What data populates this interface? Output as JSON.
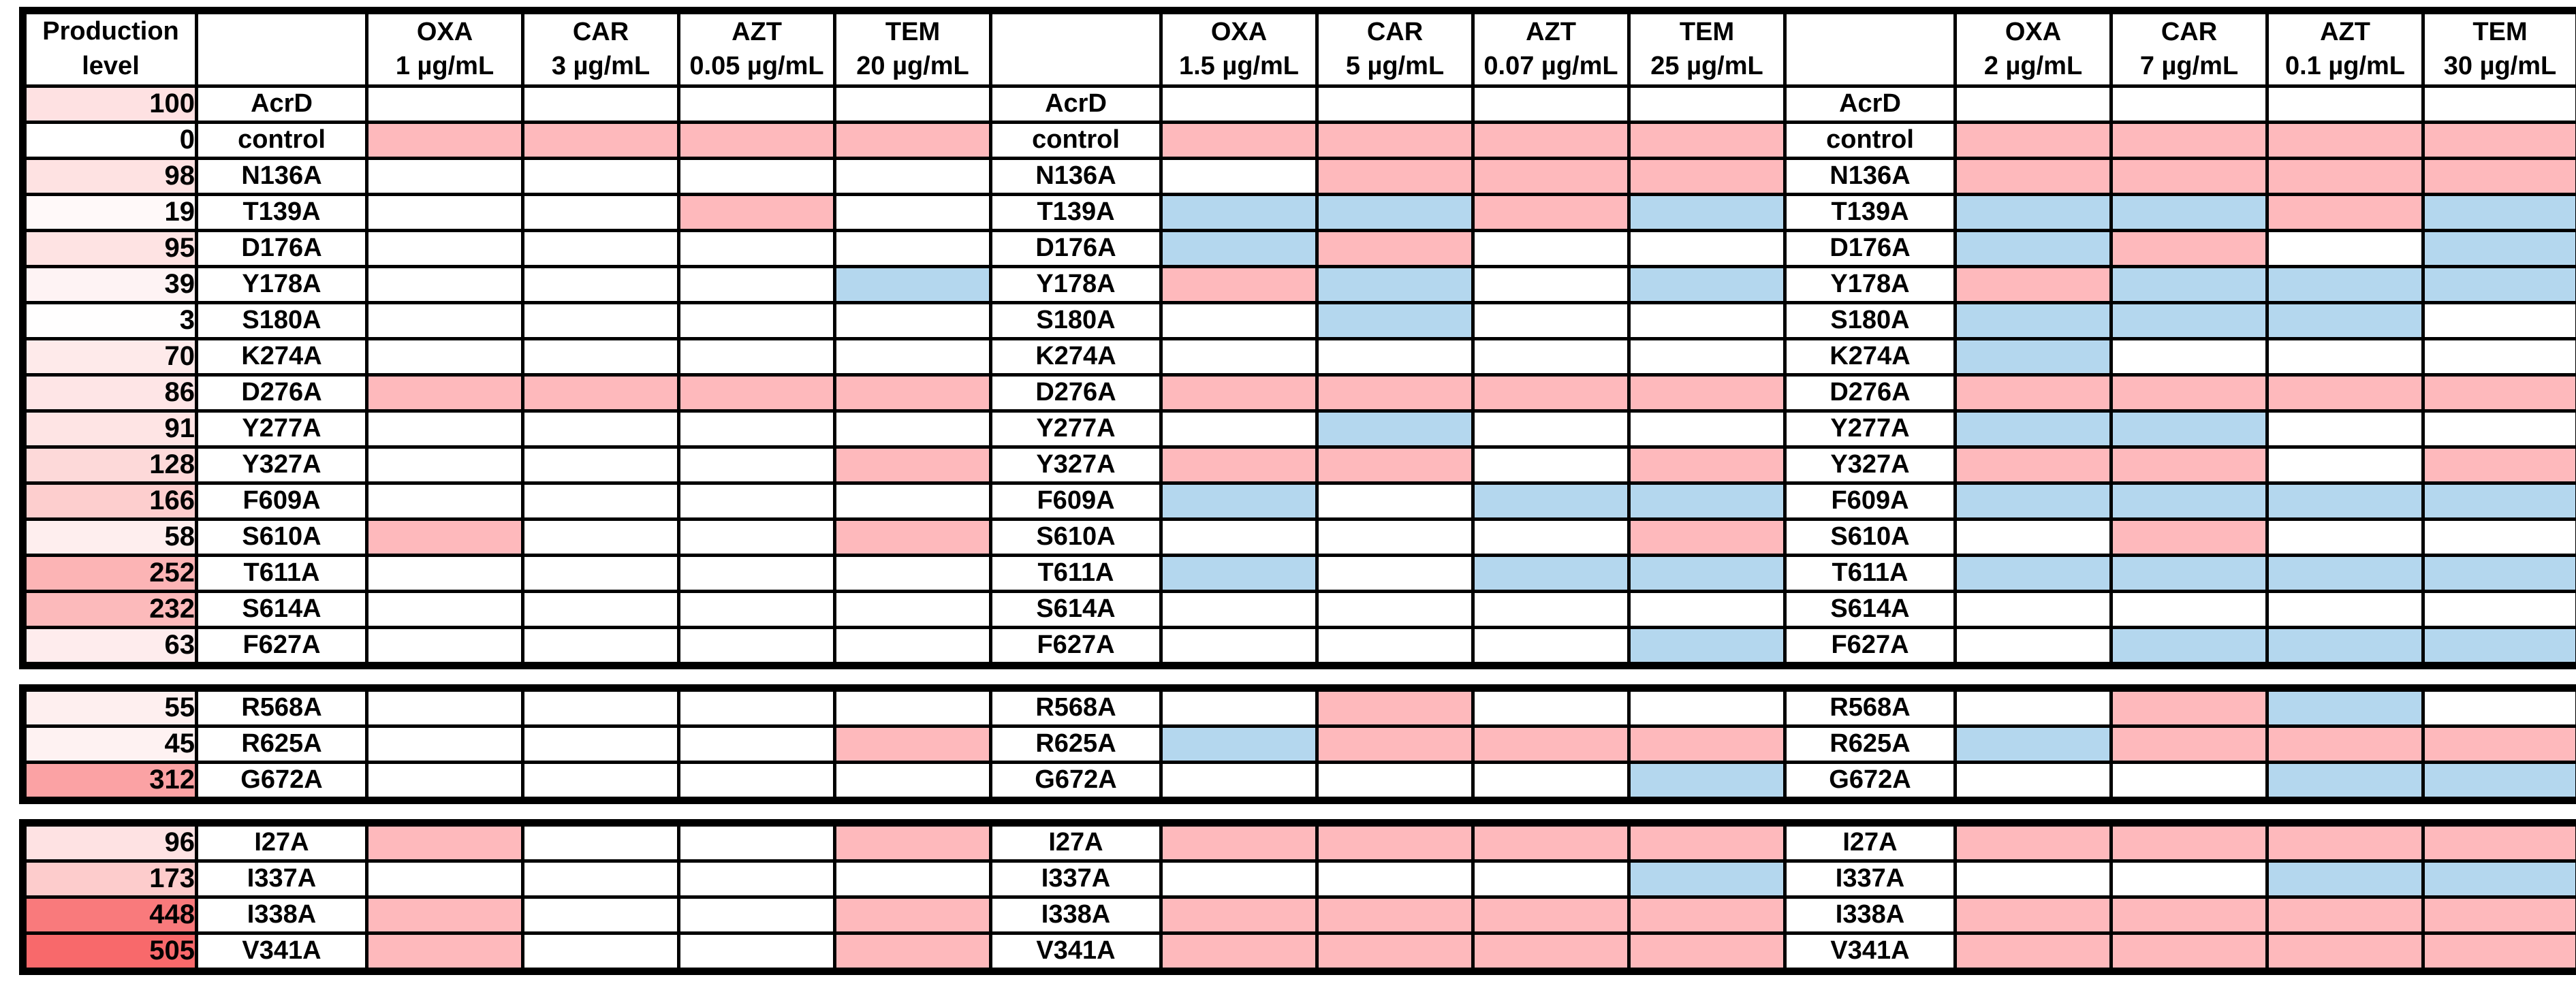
{
  "colors": {
    "cell_red": "#FEB9BC",
    "cell_blue": "#B4D7EE",
    "cell_white": "#FFFFFF",
    "border_black": "#000000",
    "production_scale_min": "#FFFFFF",
    "production_scale_max": "#F8696B",
    "production_scale_max_value": 505
  },
  "chart_data": {
    "type": "heatmap",
    "production_header": "Production level",
    "cell_color_codes": {
      "W": "white",
      "P": "red",
      "B": "blue"
    },
    "column_groups": [
      {
        "columns": [
          {
            "drug": "OXA",
            "concentration": "1 µg/mL"
          },
          {
            "drug": "CAR",
            "concentration": "3 µg/mL"
          },
          {
            "drug": "AZT",
            "concentration": "0.05 µg/mL"
          },
          {
            "drug": "TEM",
            "concentration": "20 µg/mL"
          }
        ]
      },
      {
        "columns": [
          {
            "drug": "OXA",
            "concentration": "1.5 µg/mL"
          },
          {
            "drug": "CAR",
            "concentration": "5 µg/mL"
          },
          {
            "drug": "AZT",
            "concentration": "0.07 µg/mL"
          },
          {
            "drug": "TEM",
            "concentration": "25 µg/mL"
          }
        ]
      },
      {
        "columns": [
          {
            "drug": "OXA",
            "concentration": "2 µg/mL"
          },
          {
            "drug": "CAR",
            "concentration": "7 µg/mL"
          },
          {
            "drug": "AZT",
            "concentration": "0.1 µg/mL"
          },
          {
            "drug": "TEM",
            "concentration": "30 µg/mL"
          }
        ]
      }
    ],
    "sections": [
      {
        "rows": [
          {
            "production": 100,
            "label": "AcrD",
            "groups": [
              "WWWW",
              "WWWW",
              "WWWW"
            ]
          },
          {
            "production": 0,
            "label": "control",
            "groups": [
              "PPPP",
              "PPPP",
              "PPPP"
            ]
          },
          {
            "production": 98,
            "label": "N136A",
            "groups": [
              "WWWW",
              "WPPP",
              "PPPP"
            ]
          },
          {
            "production": 19,
            "label": "T139A",
            "groups": [
              "WWPW",
              "BBPB",
              "BBPB"
            ]
          },
          {
            "production": 95,
            "label": "D176A",
            "groups": [
              "WWWW",
              "BPWW",
              "BPWB"
            ]
          },
          {
            "production": 39,
            "label": "Y178A",
            "groups": [
              "WWWB",
              "PBWB",
              "PBBB"
            ]
          },
          {
            "production": 3,
            "label": "S180A",
            "groups": [
              "WWWW",
              "WBWW",
              "BBBW"
            ]
          },
          {
            "production": 70,
            "label": "K274A",
            "groups": [
              "WWWW",
              "WWWW",
              "BWWW"
            ]
          },
          {
            "production": 86,
            "label": "D276A",
            "groups": [
              "PPPP",
              "PPPP",
              "PPPP"
            ]
          },
          {
            "production": 91,
            "label": "Y277A",
            "groups": [
              "WWWW",
              "WBWW",
              "BBWW"
            ]
          },
          {
            "production": 128,
            "label": "Y327A",
            "groups": [
              "WWWP",
              "PPWP",
              "PPWP"
            ]
          },
          {
            "production": 166,
            "label": "F609A",
            "groups": [
              "WWWW",
              "BWBB",
              "BBBB"
            ]
          },
          {
            "production": 58,
            "label": "S610A",
            "groups": [
              "PWWP",
              "WWWP",
              "WPWW"
            ]
          },
          {
            "production": 252,
            "label": "T611A",
            "groups": [
              "WWWW",
              "BWBB",
              "BBBB"
            ]
          },
          {
            "production": 232,
            "label": "S614A",
            "groups": [
              "WWWW",
              "WWWW",
              "WWWW"
            ]
          },
          {
            "production": 63,
            "label": "F627A",
            "groups": [
              "WWWW",
              "WWWB",
              "WBBB"
            ]
          }
        ]
      },
      {
        "rows": [
          {
            "production": 55,
            "label": "R568A",
            "groups": [
              "WWWW",
              "WPWW",
              "WPBW"
            ]
          },
          {
            "production": 45,
            "label": "R625A",
            "groups": [
              "WWWP",
              "BPPP",
              "BPPP"
            ]
          },
          {
            "production": 312,
            "label": "G672A",
            "groups": [
              "WWWW",
              "WWWB",
              "WWBB"
            ]
          }
        ]
      },
      {
        "rows": [
          {
            "production": 96,
            "label": "I27A",
            "groups": [
              "PWWP",
              "PPPP",
              "PPPP"
            ]
          },
          {
            "production": 173,
            "label": "I337A",
            "groups": [
              "WWWW",
              "WWWB",
              "WWBB"
            ]
          },
          {
            "production": 448,
            "label": "I338A",
            "groups": [
              "PWWP",
              "PPPP",
              "PPPP"
            ]
          },
          {
            "production": 505,
            "label": "V341A",
            "groups": [
              "PWWP",
              "PPPP",
              "PPPP"
            ]
          }
        ]
      }
    ]
  }
}
